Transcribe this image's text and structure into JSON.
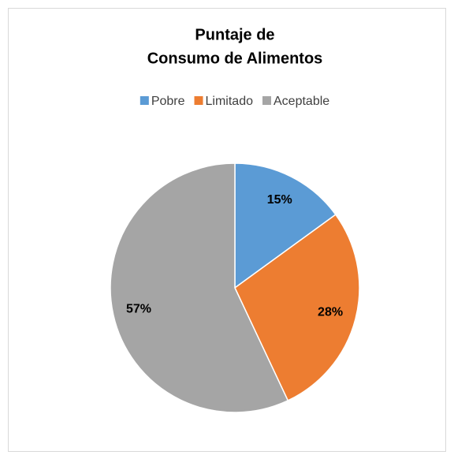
{
  "chart_data": {
    "type": "pie",
    "title": [
      "Puntaje de",
      "Consumo de Alimentos"
    ],
    "categories": [
      "Pobre",
      "Limitado",
      "Aceptable"
    ],
    "values": [
      15,
      28,
      57
    ],
    "value_labels": [
      "15%",
      "28%",
      "57%"
    ],
    "colors": [
      "#5b9bd5",
      "#ed7d31",
      "#a5a5a5"
    ],
    "legend": "top"
  }
}
